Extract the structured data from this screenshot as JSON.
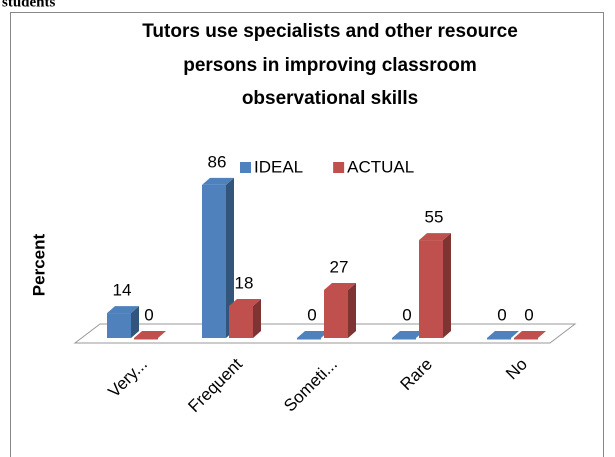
{
  "page_header": "students",
  "chart_data": {
    "type": "bar3d",
    "title": [
      "Tutors  use  specialists and other resource",
      "persons in improving  classroom",
      "observational skills"
    ],
    "ylabel": "Percent",
    "categories": [
      "Very...",
      "Frequent",
      "Someti...",
      "Rare",
      "No"
    ],
    "series": [
      {
        "name": "IDEAL",
        "color": "#4f81bd",
        "values": [
          14,
          86,
          0,
          0,
          0
        ]
      },
      {
        "name": "ACTUAL",
        "color": "#c0504d",
        "values": [
          0,
          18,
          27,
          55,
          0
        ]
      }
    ],
    "ylim": [
      0,
      100
    ],
    "legend": "top"
  }
}
